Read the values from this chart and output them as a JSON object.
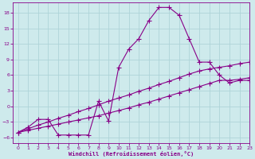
{
  "line1_x": [
    0,
    1,
    2,
    3,
    4,
    5,
    6,
    7,
    8,
    9,
    10,
    11,
    12,
    13,
    14,
    15,
    16,
    17,
    18,
    19,
    20,
    21,
    22,
    23
  ],
  "line1_y": [
    -5,
    -4,
    -2.5,
    -2.5,
    -5.5,
    -5.5,
    -5.5,
    -5.5,
    1.0,
    -2.8,
    7.5,
    11,
    13,
    16.5,
    19,
    19,
    17.5,
    13,
    8.5,
    8.5,
    6,
    4.5,
    5,
    5
  ],
  "line2_x": [
    0,
    1,
    2,
    3,
    4,
    5,
    6,
    7,
    8,
    9,
    10,
    11,
    12,
    13,
    14,
    15,
    16,
    17,
    18,
    19,
    20,
    21,
    22,
    23
  ],
  "line2_y": [
    -5.0,
    -4.3,
    -3.6,
    -3.0,
    -2.3,
    -1.7,
    -1.0,
    -0.4,
    0.3,
    1.0,
    1.6,
    2.2,
    2.9,
    3.5,
    4.2,
    4.8,
    5.5,
    6.2,
    6.8,
    7.2,
    7.5,
    7.8,
    8.2,
    8.5
  ],
  "line3_x": [
    0,
    1,
    2,
    3,
    4,
    5,
    6,
    7,
    8,
    9,
    10,
    11,
    12,
    13,
    14,
    15,
    16,
    17,
    18,
    19,
    20,
    21,
    22,
    23
  ],
  "line3_y": [
    -5.0,
    -4.6,
    -4.2,
    -3.8,
    -3.4,
    -3.0,
    -2.6,
    -2.2,
    -1.8,
    -1.3,
    -0.8,
    -0.3,
    0.3,
    0.8,
    1.4,
    2.0,
    2.6,
    3.2,
    3.8,
    4.4,
    5.0,
    5.0,
    5.2,
    5.5
  ],
  "color": "#880088",
  "bg_color": "#ceeaec",
  "grid_color": "#aed4d8",
  "xlim": [
    -0.5,
    23
  ],
  "ylim": [
    -7,
    20
  ],
  "yticks": [
    -6,
    -3,
    0,
    3,
    6,
    9,
    12,
    15,
    18
  ],
  "xticks": [
    0,
    1,
    2,
    3,
    4,
    5,
    6,
    7,
    8,
    9,
    10,
    11,
    12,
    13,
    14,
    15,
    16,
    17,
    18,
    19,
    20,
    21,
    22,
    23
  ],
  "xlabel": "Windchill (Refroidissement éolien,°C)",
  "marker": "+",
  "linewidth": 0.8,
  "markersize": 4
}
